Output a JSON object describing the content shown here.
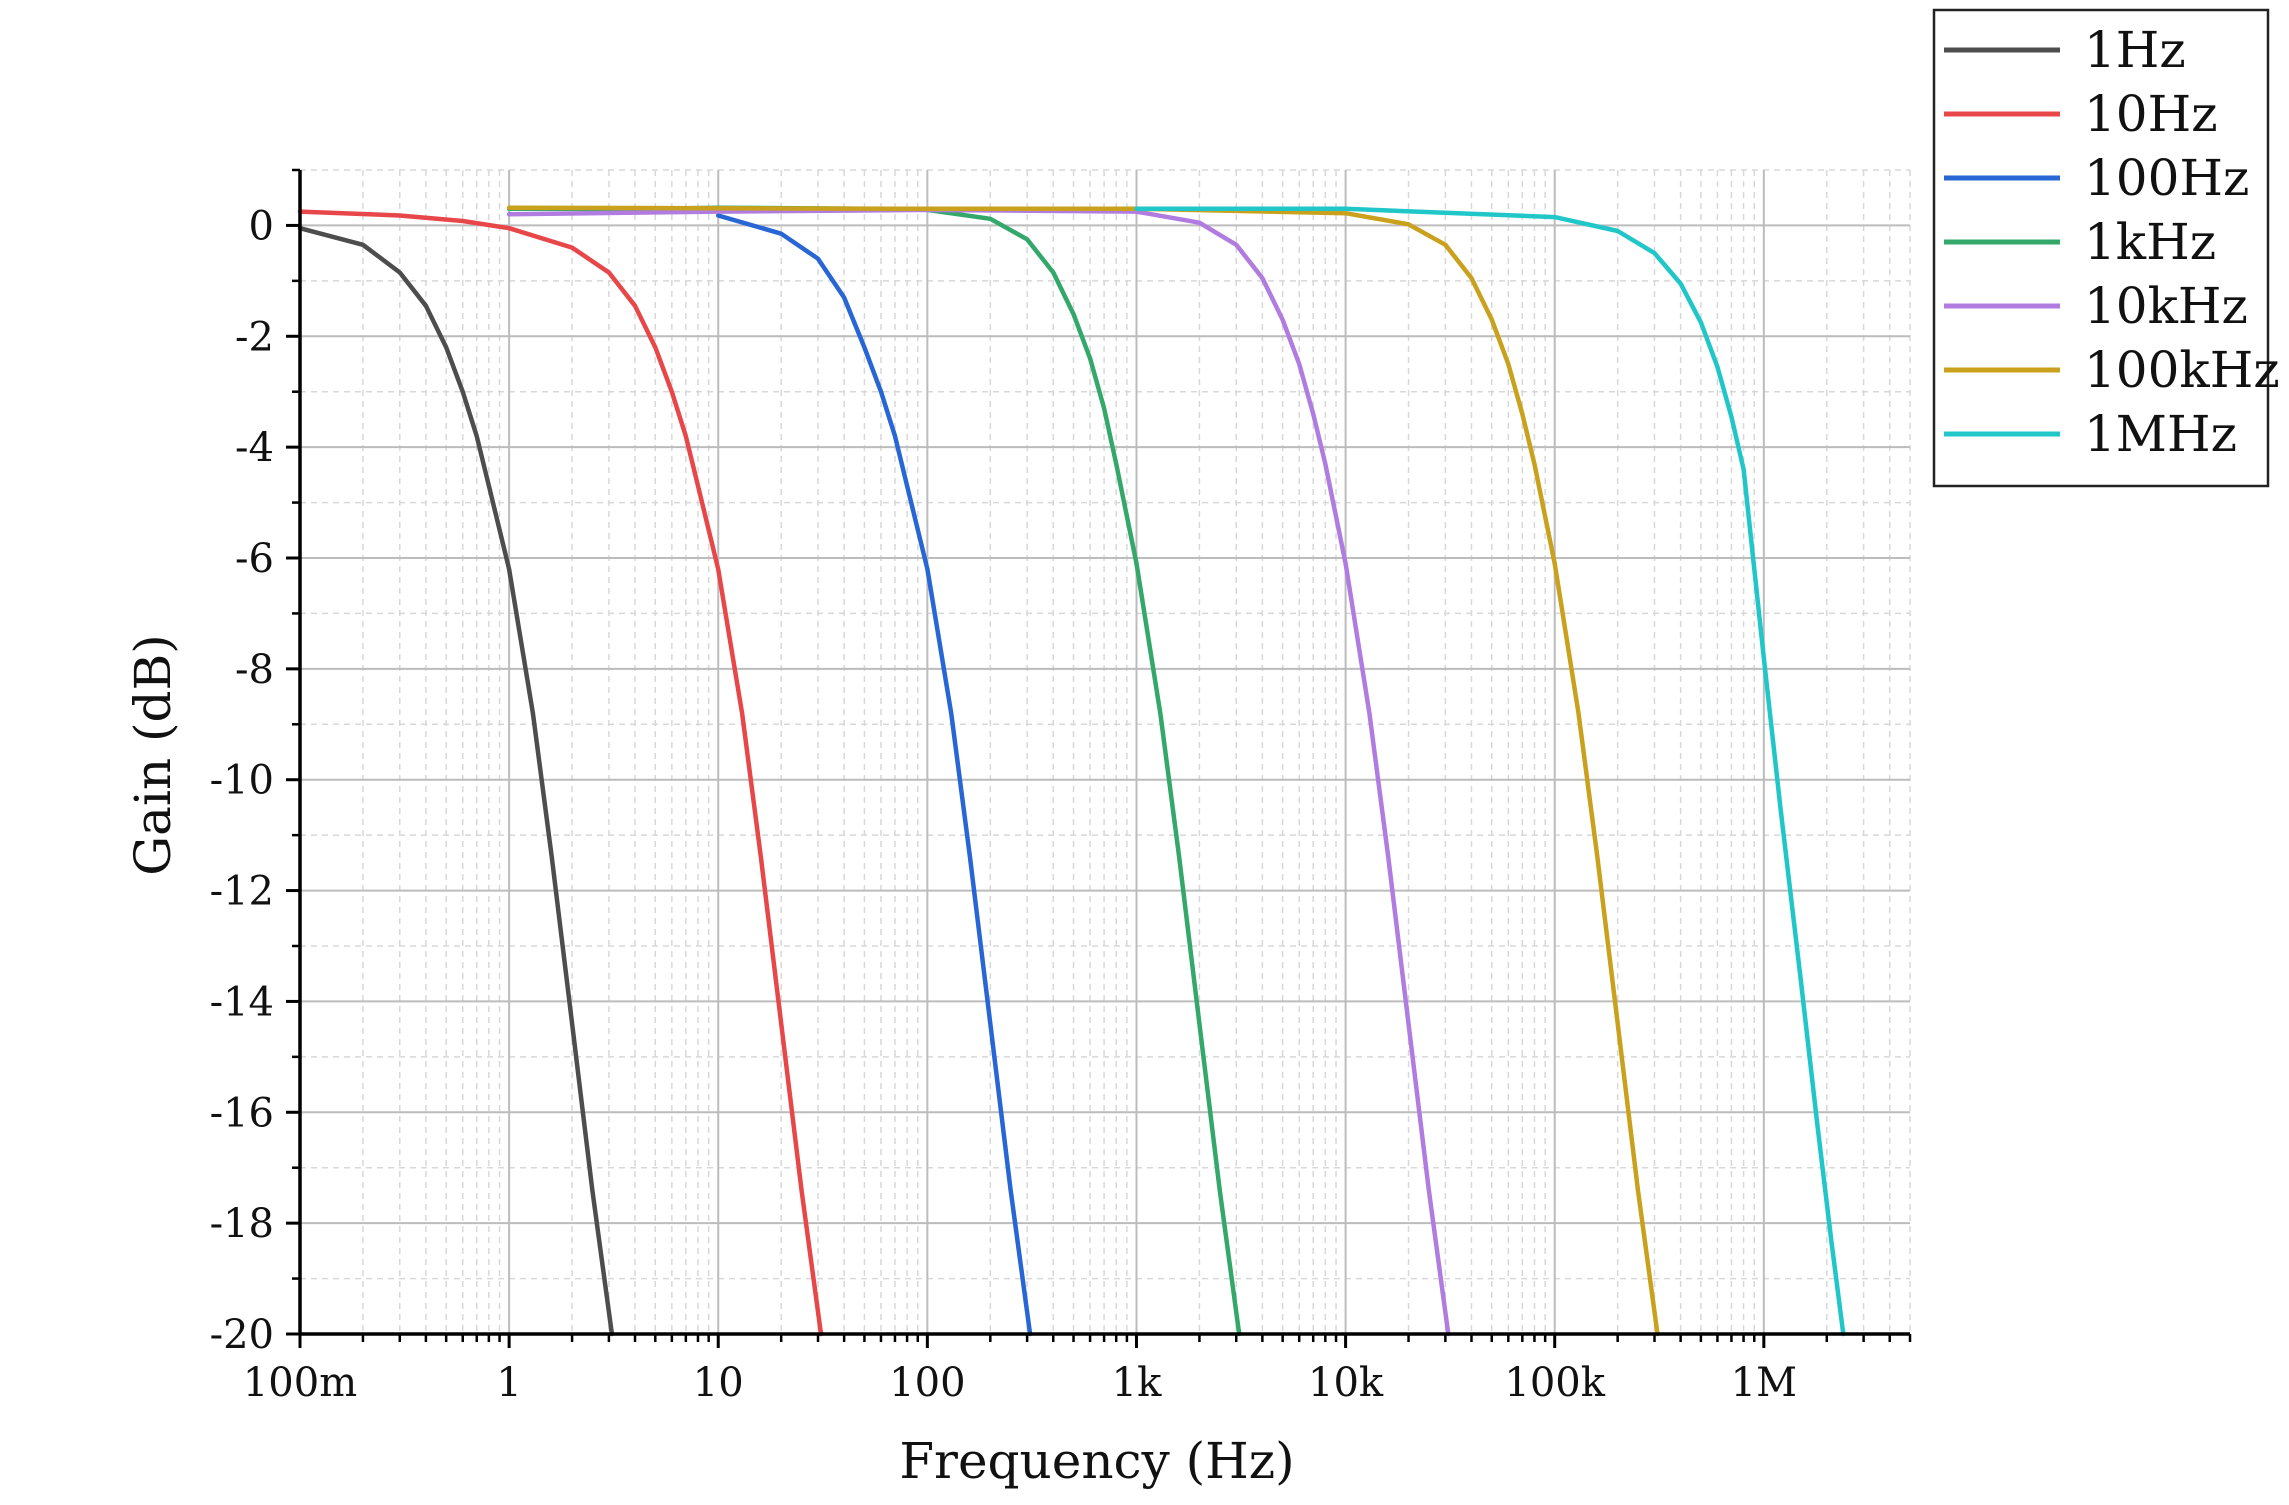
{
  "chart_data": {
    "type": "line",
    "xlabel": "Frequency (Hz)",
    "ylabel": "Gain (dB)",
    "x_scale": "log",
    "xlim": [
      0.1,
      5000000
    ],
    "ylim": [
      -20,
      1
    ],
    "x_ticks": [
      {
        "value": 0.1,
        "label": "100m"
      },
      {
        "value": 1,
        "label": "1"
      },
      {
        "value": 10,
        "label": "10"
      },
      {
        "value": 100,
        "label": "100"
      },
      {
        "value": 1000,
        "label": "1k"
      },
      {
        "value": 10000,
        "label": "10k"
      },
      {
        "value": 100000,
        "label": "100k"
      },
      {
        "value": 1000000,
        "label": "1M"
      }
    ],
    "y_ticks": [
      {
        "value": 0,
        "label": "0"
      },
      {
        "value": -2,
        "label": "-2"
      },
      {
        "value": -4,
        "label": "-4"
      },
      {
        "value": -6,
        "label": "-6"
      },
      {
        "value": -8,
        "label": "-8"
      },
      {
        "value": -10,
        "label": "-10"
      },
      {
        "value": -12,
        "label": "-12"
      },
      {
        "value": -14,
        "label": "-14"
      },
      {
        "value": -16,
        "label": "-16"
      },
      {
        "value": -18,
        "label": "-18"
      },
      {
        "value": -20,
        "label": "-20"
      }
    ],
    "grid": true,
    "legend_position": "top-right outside",
    "series": [
      {
        "name": "1Hz",
        "color": "#4d4d4d",
        "x": [
          0.1,
          0.2,
          0.3,
          0.4,
          0.5,
          0.6,
          0.7,
          0.8,
          1,
          1.3,
          1.6,
          2,
          2.5,
          3.1
        ],
        "y": [
          -0.05,
          -0.35,
          -0.85,
          -1.45,
          -2.2,
          -3.0,
          -3.8,
          -4.7,
          -6.2,
          -8.8,
          -11.4,
          -14.4,
          -17.4,
          -20
        ]
      },
      {
        "name": "10Hz",
        "color": "#e8474a",
        "x": [
          0.1,
          0.3,
          0.6,
          1,
          2,
          3,
          4,
          5,
          6,
          7,
          8,
          10,
          13,
          16,
          20,
          25,
          31
        ],
        "y": [
          0.25,
          0.18,
          0.08,
          -0.05,
          -0.4,
          -0.85,
          -1.45,
          -2.2,
          -3.0,
          -3.8,
          -4.7,
          -6.2,
          -8.8,
          -11.4,
          -14.4,
          -17.4,
          -20
        ]
      },
      {
        "name": "100Hz",
        "color": "#2766d4",
        "x": [
          10,
          20,
          30,
          40,
          50,
          60,
          70,
          80,
          100,
          130,
          160,
          200,
          250,
          310
        ],
        "y": [
          0.18,
          -0.15,
          -0.6,
          -1.3,
          -2.2,
          -3.0,
          -3.8,
          -4.7,
          -6.2,
          -8.8,
          -11.4,
          -14.4,
          -17.4,
          -20
        ]
      },
      {
        "name": "1kHz",
        "color": "#33a86a",
        "x": [
          1,
          5,
          10,
          50,
          100,
          200,
          300,
          400,
          500,
          600,
          700,
          800,
          1000,
          1300,
          1600,
          2000,
          2500,
          3100
        ],
        "y": [
          0.3,
          0.3,
          0.32,
          0.3,
          0.28,
          0.12,
          -0.25,
          -0.85,
          -1.6,
          -2.4,
          -3.3,
          -4.3,
          -6.1,
          -8.8,
          -11.4,
          -14.4,
          -17.4,
          -20
        ]
      },
      {
        "name": "10kHz",
        "color": "#b07ce0",
        "x": [
          1,
          10,
          100,
          1000,
          2000,
          3000,
          4000,
          5000,
          6000,
          7000,
          8000,
          10000,
          13000,
          16000,
          20000,
          25000,
          31000
        ],
        "y": [
          0.2,
          0.25,
          0.28,
          0.25,
          0.05,
          -0.35,
          -0.95,
          -1.7,
          -2.5,
          -3.4,
          -4.3,
          -6.1,
          -8.8,
          -11.4,
          -14.4,
          -17.4,
          -20
        ]
      },
      {
        "name": "100kHz",
        "color": "#c9a11d",
        "x": [
          1,
          10,
          100,
          1000,
          10000,
          20000,
          30000,
          40000,
          50000,
          60000,
          70000,
          80000,
          100000,
          130000,
          160000,
          200000,
          250000,
          310000
        ],
        "y": [
          0.32,
          0.31,
          0.3,
          0.3,
          0.22,
          0.02,
          -0.35,
          -0.95,
          -1.7,
          -2.5,
          -3.4,
          -4.3,
          -6.1,
          -8.8,
          -11.4,
          -14.4,
          -17.4,
          -20
        ]
      },
      {
        "name": "1MHz",
        "color": "#21c6c9",
        "x": [
          1000,
          10000,
          100000,
          200000,
          300000,
          400000,
          500000,
          600000,
          700000,
          800000,
          1000000,
          1200000,
          1500000,
          1800000,
          2100000,
          2400000
        ],
        "y": [
          0.3,
          0.3,
          0.15,
          -0.1,
          -0.5,
          -1.05,
          -1.75,
          -2.55,
          -3.45,
          -4.4,
          -7.8,
          -10.5,
          -13.6,
          -16.2,
          -18.3,
          -20
        ]
      }
    ]
  }
}
